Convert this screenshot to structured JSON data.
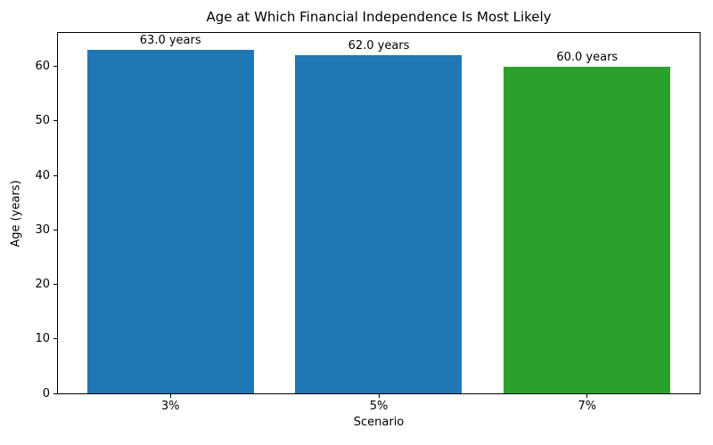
{
  "figure": {
    "title": "Age at Which Financial Independence Is Most Likely"
  },
  "chart_data": {
    "type": "bar",
    "title": "Age at Which Financial Independence Is Most Likely",
    "categories": [
      "3%",
      "5%",
      "7%"
    ],
    "values": [
      63.0,
      62.0,
      60.0
    ],
    "bar_labels": [
      "63.0 years",
      "62.0 years",
      "60.0 years"
    ],
    "bar_colors": [
      "#1f77b4",
      "#1f77b4",
      "#2ca02c"
    ],
    "xlabel": "Scenario",
    "ylabel": "Age (years)",
    "yticks": [
      0,
      10,
      20,
      30,
      40,
      50,
      60
    ],
    "ylim": [
      0,
      66.15
    ],
    "grid": false,
    "legend": "none"
  }
}
